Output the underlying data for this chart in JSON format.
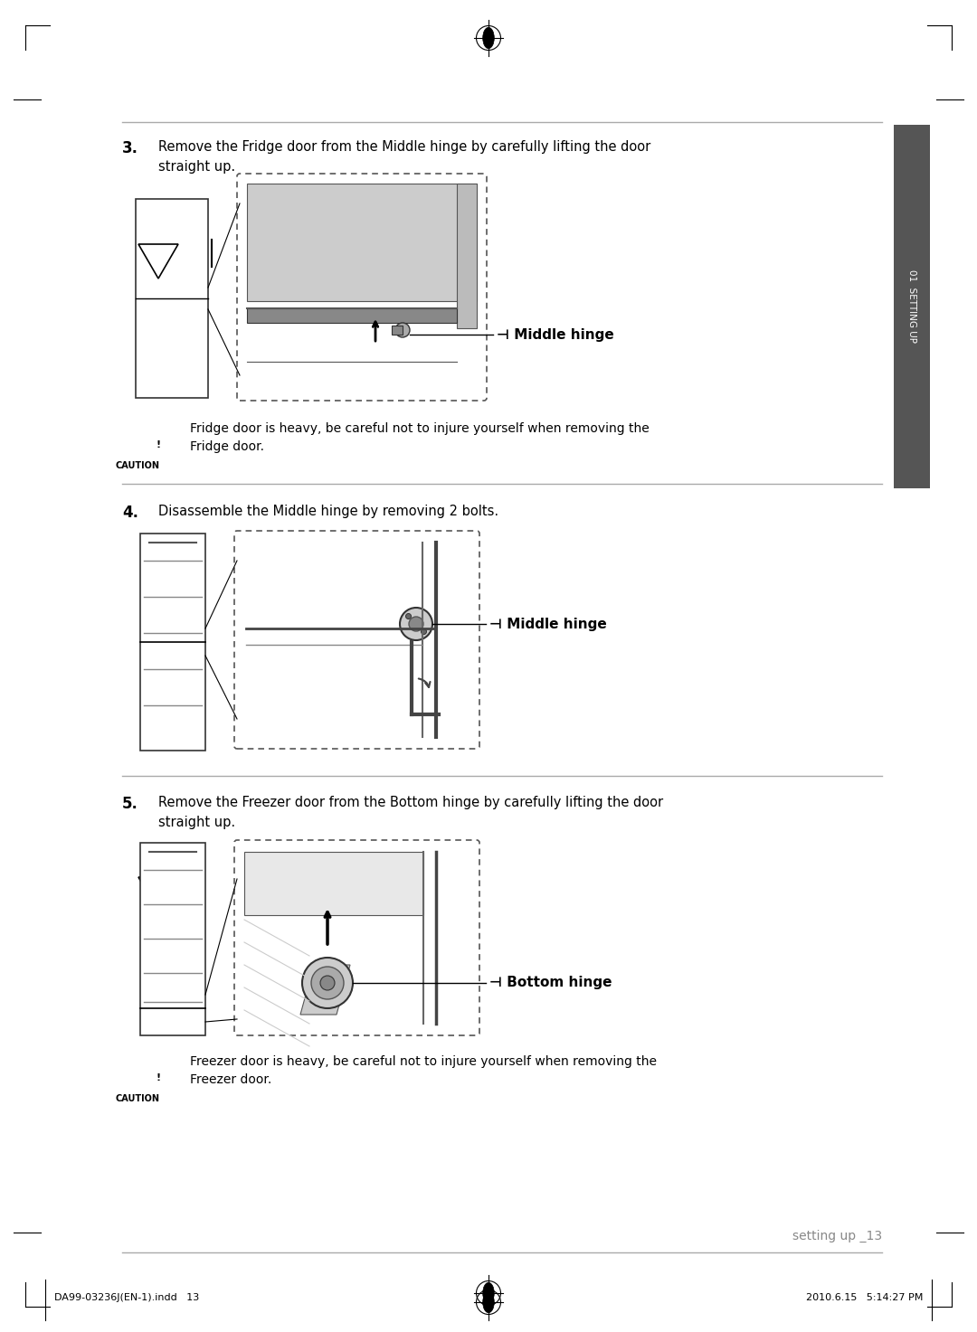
{
  "bg_color": "#ffffff",
  "page_width": 10.8,
  "page_height": 14.73,
  "section_bar_text": "01  SETTING UP",
  "step3_num": "3.",
  "step3_line1": "Remove the Fridge door from the Middle hinge by carefully lifting the door",
  "step3_line2": "straight up.",
  "step3_label": "Middle hinge",
  "caution3_line1": "Fridge door is heavy, be careful not to injure yourself when removing the",
  "caution3_line2": "Fridge door.",
  "step4_num": "4.",
  "step4_desc": "Disassemble the Middle hinge by removing 2 bolts.",
  "step4_label": "Middle hinge",
  "step5_num": "5.",
  "step5_line1": "Remove the Freezer door from the Bottom hinge by carefully lifting the door",
  "step5_line2": "straight up.",
  "step5_label": "Bottom hinge",
  "caution5_line1": "Freezer door is heavy, be careful not to injure yourself when removing the",
  "caution5_line2": "Freezer door.",
  "footer_left": "DA99-03236J(EN-1).indd   13",
  "footer_right": "2010.6.15   5:14:27 PM",
  "page_num_text": "setting up _13"
}
